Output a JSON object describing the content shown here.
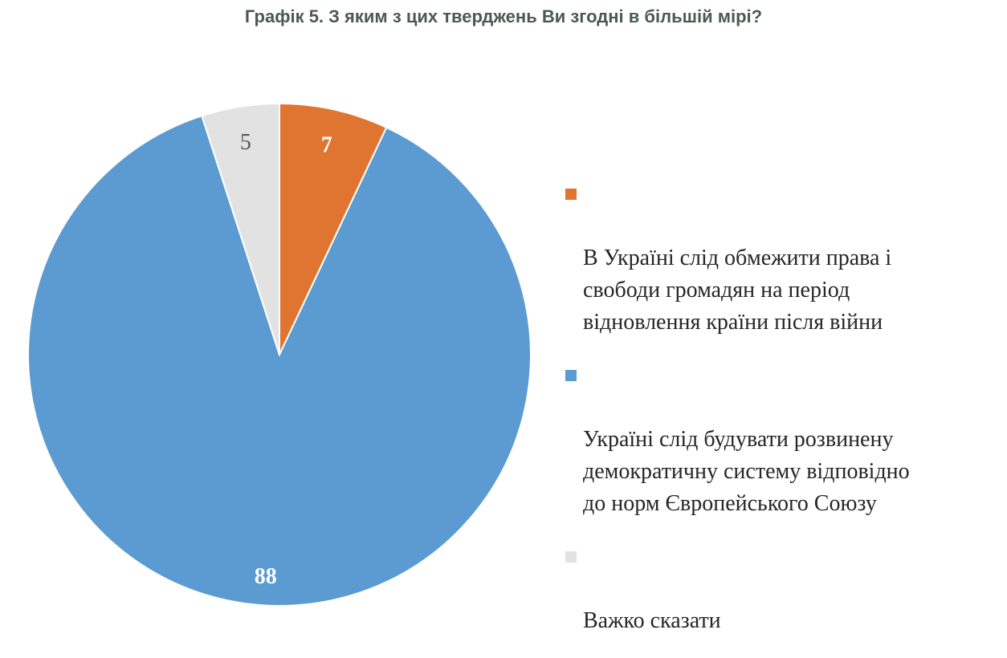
{
  "title": "Графік 5. З яким з цих тверджень Ви згодні в більшій мірі?",
  "chart_data": {
    "type": "pie",
    "title": "Графік 5. З яким з цих тверджень Ви згодні в більшій мірі?",
    "slices": [
      {
        "label": "В Україні слід обмежити права і\nсвободи громадян на період\nвідновлення країни після війни",
        "value": 7,
        "value_label": "7",
        "color": "#e07531",
        "label_color": "#ffffff"
      },
      {
        "label": "Україні слід будувати розвинену\nдемократичну  систему відповідно\nдо норм Європейського Союзу",
        "value": 88,
        "value_label": "88",
        "color": "#5b9bd1",
        "label_color": "#ffffff"
      },
      {
        "label": "Важко сказати",
        "value": 5,
        "value_label": "5",
        "color": "#e2e2e2",
        "label_color": "#595959"
      }
    ],
    "start_angle_deg": 0,
    "direction": "clockwise",
    "legend_position": "right"
  }
}
